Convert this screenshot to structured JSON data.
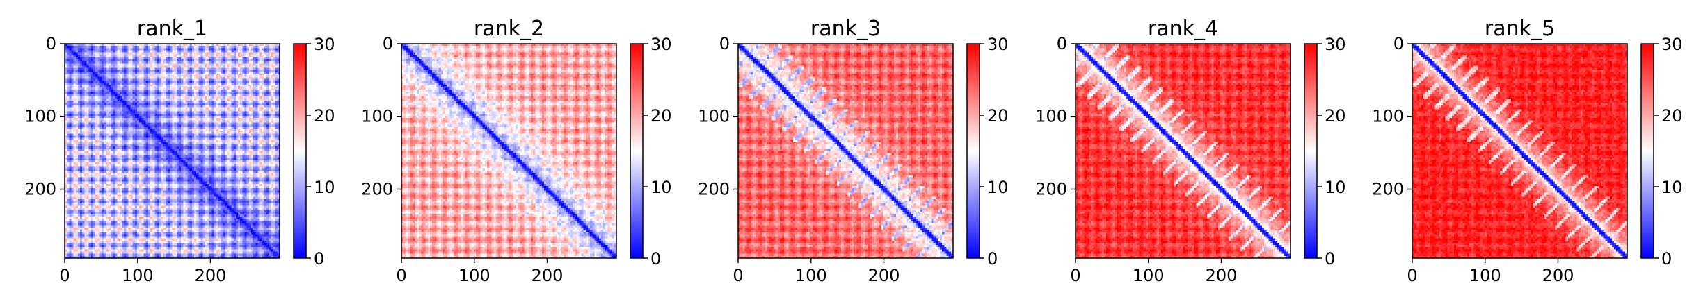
{
  "chart_data": [
    {
      "type": "heatmap",
      "title": "rank_1",
      "xlim": [
        0,
        295
      ],
      "ylim": [
        295,
        0
      ],
      "xticks": [
        0,
        100,
        200
      ],
      "yticks": [
        0,
        100,
        200
      ],
      "colorbar": {
        "min": 0,
        "max": 30,
        "ticks": [
          0,
          10,
          20,
          30
        ],
        "colormap": "bwr"
      },
      "background_level": 12,
      "diagonal_level": 0,
      "checker_amplitude": 8,
      "period": 30
    },
    {
      "type": "heatmap",
      "title": "rank_2",
      "xlim": [
        0,
        295
      ],
      "ylim": [
        295,
        0
      ],
      "xticks": [
        0,
        100,
        200
      ],
      "yticks": [
        0,
        100,
        200
      ],
      "colorbar": {
        "min": 0,
        "max": 30,
        "ticks": [
          0,
          10,
          20,
          30
        ],
        "colormap": "bwr"
      },
      "background_level": 20,
      "diagonal_level": 0,
      "checker_amplitude": 5,
      "period": 30
    },
    {
      "type": "heatmap",
      "title": "rank_3",
      "xlim": [
        0,
        295
      ],
      "ylim": [
        295,
        0
      ],
      "xticks": [
        0,
        100,
        200
      ],
      "yticks": [
        0,
        100,
        200
      ],
      "colorbar": {
        "min": 0,
        "max": 30,
        "ticks": [
          0,
          10,
          20,
          30
        ],
        "colormap": "bwr"
      },
      "background_level": 24,
      "diagonal_level": 0,
      "checker_amplitude": 4,
      "period": 30
    },
    {
      "type": "heatmap",
      "title": "rank_4",
      "xlim": [
        0,
        295
      ],
      "ylim": [
        295,
        0
      ],
      "xticks": [
        0,
        100,
        200
      ],
      "yticks": [
        0,
        100,
        200
      ],
      "colorbar": {
        "min": 0,
        "max": 30,
        "ticks": [
          0,
          10,
          20,
          30
        ],
        "colormap": "bwr"
      },
      "background_level": 27,
      "diagonal_level": 0,
      "checker_amplitude": 3,
      "period": 30
    },
    {
      "type": "heatmap",
      "title": "rank_5",
      "xlim": [
        0,
        295
      ],
      "ylim": [
        295,
        0
      ],
      "xticks": [
        0,
        100,
        200
      ],
      "yticks": [
        0,
        100,
        200
      ],
      "colorbar": {
        "min": 0,
        "max": 30,
        "ticks": [
          0,
          10,
          20,
          30
        ],
        "colormap": "bwr"
      },
      "background_level": 28,
      "diagonal_level": 0,
      "checker_amplitude": 2,
      "period": 30
    }
  ]
}
